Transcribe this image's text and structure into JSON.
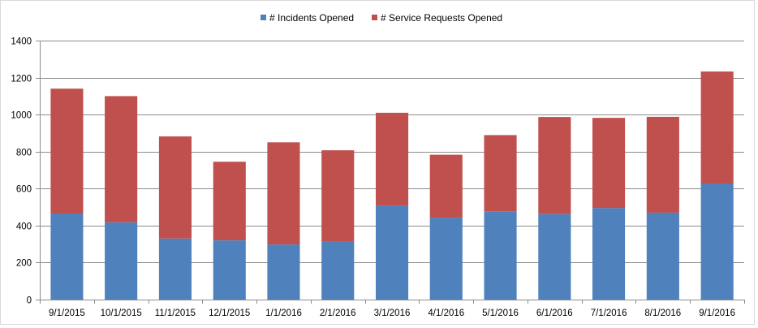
{
  "chart_data": {
    "type": "bar",
    "stacked": true,
    "title": "",
    "xlabel": "",
    "ylabel": "",
    "ylim": [
      0,
      1400
    ],
    "yticks": [
      0,
      200,
      400,
      600,
      800,
      1000,
      1200,
      1400
    ],
    "grid": true,
    "legend_position": "top",
    "categories": [
      "9/1/2015",
      "10/1/2015",
      "11/1/2015",
      "12/1/2015",
      "1/1/2016",
      "2/1/2016",
      "3/1/2016",
      "4/1/2016",
      "5/1/2016",
      "6/1/2016",
      "7/1/2016",
      "8/1/2016",
      "9/1/2016"
    ],
    "series": [
      {
        "name": "# Incidents Opened",
        "color": "#4f81bd",
        "values": [
          465,
          418,
          330,
          320,
          298,
          312,
          508,
          443,
          477,
          462,
          495,
          470,
          628
        ]
      },
      {
        "name": "# Service Requests Opened",
        "color": "#c0504d",
        "values": [
          675,
          682,
          552,
          425,
          552,
          495,
          502,
          340,
          412,
          525,
          487,
          518,
          605
        ]
      }
    ]
  }
}
